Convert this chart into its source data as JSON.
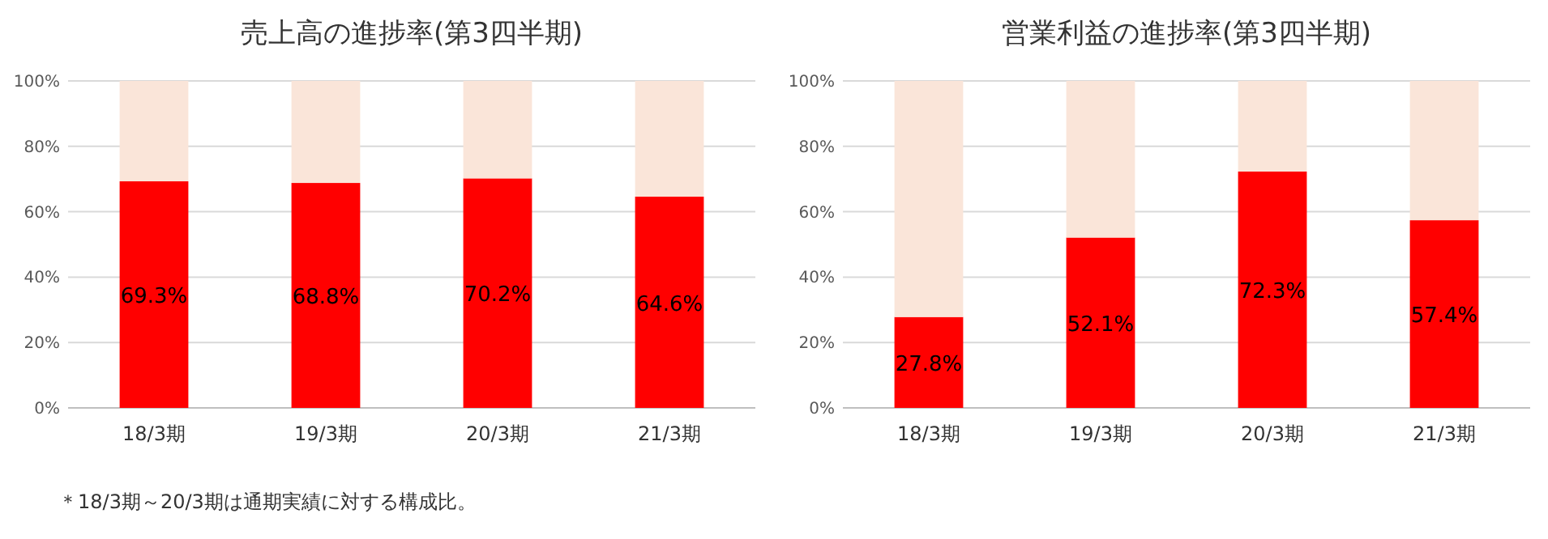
{
  "chart_data": [
    {
      "type": "bar",
      "title": "売上高の進捗率(第3四半期)",
      "categories": [
        "18/3期",
        "19/3期",
        "20/3期",
        "21/3期"
      ],
      "stacked": true,
      "grid": "y",
      "ylim": [
        0,
        100
      ],
      "yticks": [
        {
          "value": 0,
          "label": "0%"
        },
        {
          "value": 20,
          "label": "20%"
        },
        {
          "value": 40,
          "label": "40%"
        },
        {
          "value": 60,
          "label": "60%"
        },
        {
          "value": 80,
          "label": "80%"
        },
        {
          "value": 100,
          "label": "100%"
        }
      ],
      "series": [
        {
          "color": "#ff0000",
          "values": [
            69.3,
            68.8,
            70.2,
            64.6
          ],
          "value_labels": [
            "69.3%",
            "68.8%",
            "70.2%",
            "64.6%"
          ]
        },
        {
          "color": "#fae5d9",
          "values": [
            30.7,
            31.2,
            29.8,
            35.4
          ]
        }
      ],
      "annotations": [
        "＊18/3期～20/3期は通期実績に対する構成比。"
      ]
    },
    {
      "type": "bar",
      "title": "営業利益の進捗率(第3四半期)",
      "categories": [
        "18/3期",
        "19/3期",
        "20/3期",
        "21/3期"
      ],
      "stacked": true,
      "grid": "y",
      "ylim": [
        0,
        100
      ],
      "yticks": [
        {
          "value": 0,
          "label": "0%"
        },
        {
          "value": 20,
          "label": "20%"
        },
        {
          "value": 40,
          "label": "40%"
        },
        {
          "value": 60,
          "label": "60%"
        },
        {
          "value": 80,
          "label": "80%"
        },
        {
          "value": 100,
          "label": "100%"
        }
      ],
      "series": [
        {
          "color": "#ff0000",
          "values": [
            27.8,
            52.1,
            72.3,
            57.4
          ],
          "value_labels": [
            "27.8%",
            "52.1%",
            "72.3%",
            "57.4%"
          ]
        },
        {
          "color": "#fae5d9",
          "values": [
            72.2,
            47.9,
            27.7,
            42.6
          ]
        }
      ]
    }
  ]
}
